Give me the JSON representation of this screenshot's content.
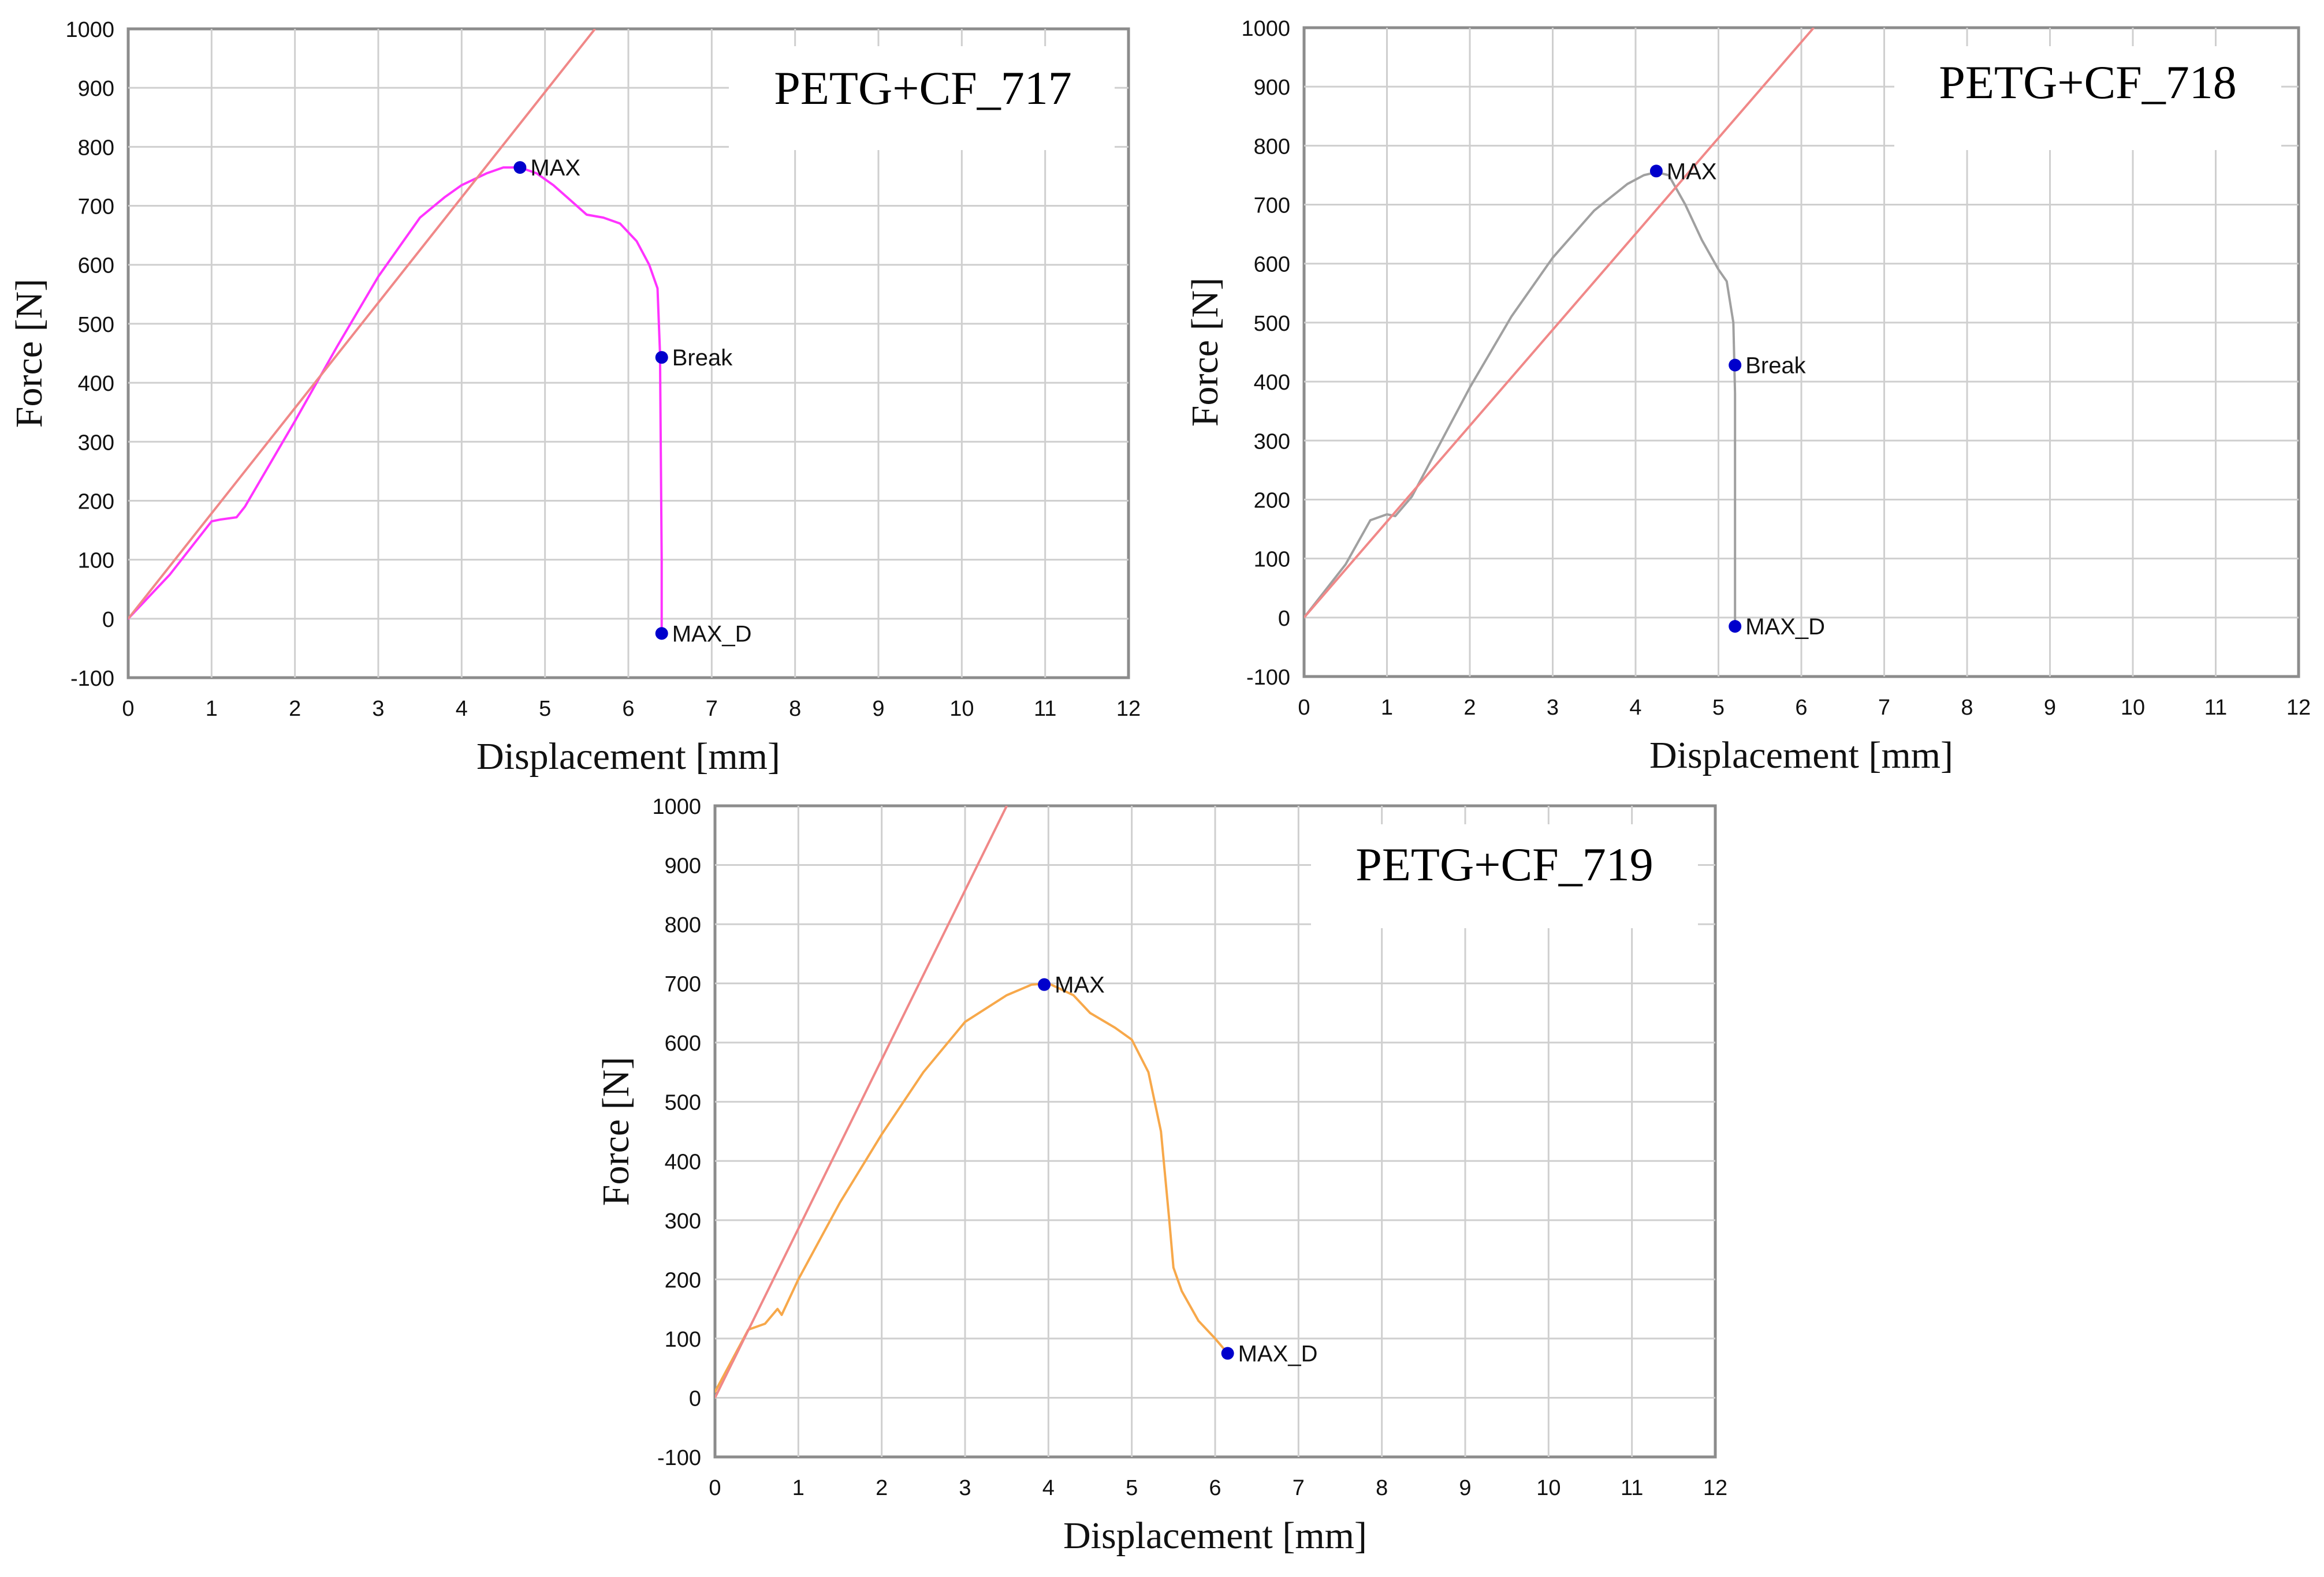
{
  "chart_data": [
    {
      "type": "line",
      "title": "PETG+CF_717",
      "xlabel": "Displacement [mm]",
      "ylabel": "Force [N]",
      "xlim": [
        0,
        12
      ],
      "ylim": [
        -100,
        1000
      ],
      "x_ticks": [
        0,
        1,
        2,
        3,
        4,
        5,
        6,
        7,
        8,
        9,
        10,
        11,
        12
      ],
      "y_ticks": [
        1000,
        900,
        800,
        700,
        600,
        500,
        400,
        300,
        200,
        100,
        0,
        -100
      ],
      "grid": true,
      "colors": {
        "curve": "#ff33ff",
        "reference": "#f08888",
        "marker": "#0000cc"
      },
      "series": [
        {
          "name": "force-displacement",
          "x": [
            0,
            0.5,
            1.0,
            1.1,
            1.3,
            1.4,
            2.0,
            2.5,
            3.0,
            3.5,
            3.8,
            4.0,
            4.3,
            4.5,
            4.7,
            4.9,
            5.1,
            5.3,
            5.5,
            5.7,
            5.9,
            6.1,
            6.25,
            6.35,
            6.38,
            6.4,
            6.4
          ],
          "y": [
            0,
            75,
            165,
            168,
            172,
            190,
            335,
            460,
            580,
            680,
            715,
            735,
            755,
            765,
            765,
            755,
            735,
            710,
            685,
            680,
            670,
            640,
            600,
            560,
            450,
            100,
            -25
          ]
        },
        {
          "name": "reference-line",
          "x": [
            0,
            5.6
          ],
          "y": [
            0,
            1000
          ]
        }
      ],
      "markers": [
        {
          "label": "MAX",
          "x": 4.7,
          "y": 765
        },
        {
          "label": "Break",
          "x": 6.4,
          "y": 443
        },
        {
          "label": "MAX_D",
          "x": 6.4,
          "y": -25
        }
      ]
    },
    {
      "type": "line",
      "title": "PETG+CF_718",
      "xlabel": "Displacement [mm]",
      "ylabel": "Force [N]",
      "xlim": [
        0,
        12
      ],
      "ylim": [
        -100,
        1000
      ],
      "x_ticks": [
        0,
        1,
        2,
        3,
        4,
        5,
        6,
        7,
        8,
        9,
        10,
        11,
        12
      ],
      "y_ticks": [
        1000,
        900,
        800,
        700,
        600,
        500,
        400,
        300,
        200,
        100,
        0,
        -100
      ],
      "grid": true,
      "colors": {
        "curve": "#a0a0a0",
        "reference": "#f08888",
        "marker": "#0000cc"
      },
      "series": [
        {
          "name": "force-displacement",
          "x": [
            0,
            0.5,
            0.8,
            1.0,
            1.1,
            1.3,
            2.0,
            2.5,
            3.0,
            3.5,
            3.9,
            4.1,
            4.25,
            4.4,
            4.6,
            4.8,
            5.0,
            5.1,
            5.18,
            5.2,
            5.2
          ],
          "y": [
            0,
            90,
            165,
            175,
            172,
            205,
            390,
            510,
            610,
            690,
            735,
            750,
            755,
            750,
            700,
            640,
            590,
            570,
            500,
            380,
            -15
          ]
        },
        {
          "name": "reference-line",
          "x": [
            0,
            6.15
          ],
          "y": [
            0,
            1000
          ]
        }
      ],
      "markers": [
        {
          "label": "MAX",
          "x": 4.25,
          "y": 757
        },
        {
          "label": "Break",
          "x": 5.2,
          "y": 428
        },
        {
          "label": "MAX_D",
          "x": 5.2,
          "y": -15
        }
      ]
    },
    {
      "type": "line",
      "title": "PETG+CF_719",
      "xlabel": "Displacement [mm]",
      "ylabel": "Force [N]",
      "xlim": [
        0,
        12
      ],
      "ylim": [
        -100,
        1000
      ],
      "x_ticks": [
        0,
        1,
        2,
        3,
        4,
        5,
        6,
        7,
        8,
        9,
        10,
        11,
        12
      ],
      "y_ticks": [
        1000,
        900,
        800,
        700,
        600,
        500,
        400,
        300,
        200,
        100,
        0,
        -100
      ],
      "grid": true,
      "colors": {
        "curve": "#f7a84a",
        "reference": "#f08888",
        "marker": "#0000cc"
      },
      "series": [
        {
          "name": "force-displacement",
          "x": [
            0,
            0.4,
            0.6,
            0.75,
            0.8,
            1.0,
            1.5,
            2.0,
            2.5,
            3.0,
            3.5,
            3.8,
            4.0,
            4.3,
            4.5,
            4.8,
            5.0,
            5.2,
            5.35,
            5.45,
            5.5,
            5.6,
            5.8,
            6.0,
            6.15
          ],
          "y": [
            10,
            115,
            125,
            150,
            140,
            200,
            330,
            445,
            550,
            635,
            680,
            698,
            700,
            680,
            650,
            625,
            605,
            550,
            450,
            300,
            220,
            180,
            130,
            100,
            75
          ]
        },
        {
          "name": "reference-line",
          "x": [
            0,
            3.5
          ],
          "y": [
            0,
            1000
          ]
        }
      ],
      "markers": [
        {
          "label": "MAX",
          "x": 3.95,
          "y": 698
        },
        {
          "label": "MAX_D",
          "x": 6.15,
          "y": 75
        }
      ]
    }
  ]
}
